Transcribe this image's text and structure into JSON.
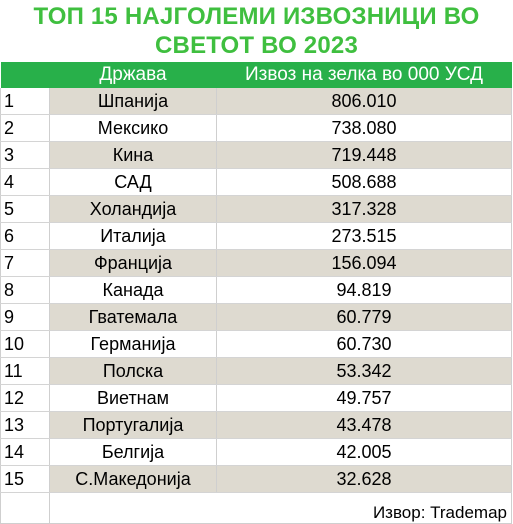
{
  "title_line1": "ТОП 15 НАЈГОЛЕМИ ИЗВОЗНИЦИ ВО",
  "title_line2": "СВЕТОТ ВО 2023",
  "colors": {
    "title": "#3fbf3f",
    "header_bg": "#28b04a",
    "header_text": "#ffffff",
    "row_shade": "#dedad0"
  },
  "chart_data": {
    "type": "table",
    "title": "ТОП 15 НАЈГОЛЕМИ ИЗВОЗНИЦИ ВО СВЕТОТ ВО 2023",
    "columns": [
      "",
      "Држава",
      "Извоз на зелка во 000 УСД"
    ],
    "rows": [
      {
        "rank": "1",
        "country": "Шпанија",
        "value": "806.010"
      },
      {
        "rank": "2",
        "country": "Мексико",
        "value": "738.080"
      },
      {
        "rank": "3",
        "country": "Кина",
        "value": "719.448"
      },
      {
        "rank": "4",
        "country": "САД",
        "value": "508.688"
      },
      {
        "rank": "5",
        "country": "Холандија",
        "value": "317.328"
      },
      {
        "rank": "6",
        "country": "Италија",
        "value": "273.515"
      },
      {
        "rank": "7",
        "country": "Франција",
        "value": "156.094"
      },
      {
        "rank": "8",
        "country": "Канада",
        "value": "94.819"
      },
      {
        "rank": "9",
        "country": "Гватемала",
        "value": "60.779"
      },
      {
        "rank": "10",
        "country": "Германија",
        "value": "60.730"
      },
      {
        "rank": "11",
        "country": "Полска",
        "value": "53.342"
      },
      {
        "rank": "12",
        "country": "Виетнам",
        "value": "49.757"
      },
      {
        "rank": "13",
        "country": "Португалија",
        "value": "43.478"
      },
      {
        "rank": "14",
        "country": "Белгија",
        "value": "42.005"
      },
      {
        "rank": "15",
        "country": "С.Македонија",
        "value": "32.628"
      }
    ],
    "source": "Извор: Trademap"
  }
}
